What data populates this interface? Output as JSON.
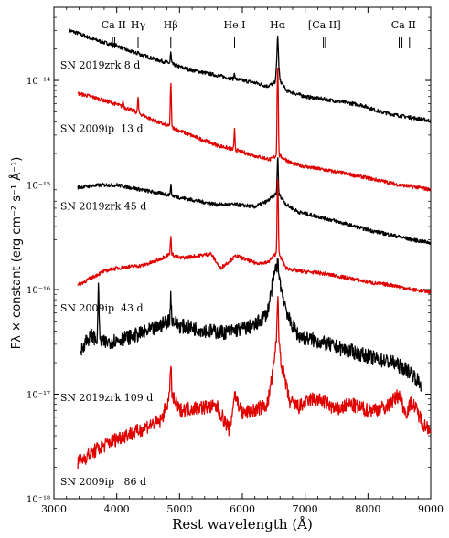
{
  "chart_data": {
    "type": "line",
    "xlabel": "Rest wavelength (Å)",
    "ylabel": "Fλ × constant (erg cm⁻² s⁻¹ Å⁻¹)",
    "xlim": [
      3000,
      9000
    ],
    "ylim": [
      1e-18,
      5e-14
    ],
    "yscale": "log",
    "xticks": [
      3000,
      4000,
      5000,
      6000,
      7000,
      8000,
      9000
    ],
    "ytick_labels": [
      {
        "value": 1e-14,
        "label": "10⁻¹⁴"
      },
      {
        "value": 1e-15,
        "label": "10⁻¹⁵"
      },
      {
        "value": 1e-16,
        "label": "10⁻¹⁶"
      },
      {
        "value": 1e-17,
        "label": "10⁻¹⁷"
      },
      {
        "value": 1e-18,
        "label": "10⁻¹⁸"
      }
    ],
    "line_ids": [
      {
        "label": "Ca II",
        "wavelengths": [
          3934,
          3968
        ]
      },
      {
        "label": "Hγ",
        "wavelengths": [
          4340
        ]
      },
      {
        "label": "Hβ",
        "wavelengths": [
          4861
        ]
      },
      {
        "label": "He I",
        "wavelengths": [
          5876
        ]
      },
      {
        "label": "Hα",
        "wavelengths": [
          6563
        ]
      },
      {
        "label": "[Ca II]",
        "wavelengths": [
          7291,
          7324
        ]
      },
      {
        "label": "Ca II",
        "wavelengths": [
          8498,
          8542,
          8662
        ]
      }
    ],
    "series": [
      {
        "name": "SN 2019zrk 8 d",
        "color": "#000000",
        "label_at": [
          3100,
          1.3e-14
        ],
        "points": [
          [
            3240,
            3e-14
          ],
          [
            3400,
            2.8e-14
          ],
          [
            3600,
            2.5e-14
          ],
          [
            3800,
            2.3e-14
          ],
          [
            4000,
            2.15e-14
          ],
          [
            4200,
            1.9e-14
          ],
          [
            4400,
            1.75e-14
          ],
          [
            4600,
            1.6e-14
          ],
          [
            4860,
            1.45e-14
          ],
          [
            5000,
            1.35e-14
          ],
          [
            5200,
            1.25e-14
          ],
          [
            5500,
            1.15e-14
          ],
          [
            5800,
            1.05e-14
          ],
          [
            6000,
            1e-14
          ],
          [
            6200,
            9.5e-15
          ],
          [
            6400,
            8.8e-15
          ],
          [
            6520,
            9.5e-15
          ],
          [
            6563,
            1.85e-14
          ],
          [
            6600,
            1e-14
          ],
          [
            6700,
            8e-15
          ],
          [
            7000,
            7e-15
          ],
          [
            7300,
            6.6e-15
          ],
          [
            7600,
            6.2e-15
          ],
          [
            7900,
            5.8e-15
          ],
          [
            8200,
            5e-15
          ],
          [
            8500,
            4.6e-15
          ],
          [
            8800,
            4.3e-15
          ],
          [
            9000,
            4.1e-15
          ]
        ],
        "peaks": [
          [
            4340,
            1e-15
          ],
          [
            4861,
            4e-15
          ],
          [
            5876,
            1.5e-15
          ],
          [
            6563,
            9e-15
          ]
        ]
      },
      {
        "name": "SN 2009ip  13 d",
        "color": "#e00000",
        "label_at": [
          3100,
          3.2e-15
        ],
        "points": [
          [
            3380,
            7.5e-15
          ],
          [
            3600,
            7e-15
          ],
          [
            3800,
            6.4e-15
          ],
          [
            4000,
            5.9e-15
          ],
          [
            4200,
            5.3e-15
          ],
          [
            4400,
            4.7e-15
          ],
          [
            4600,
            4.1e-15
          ],
          [
            4860,
            3.6e-15
          ],
          [
            5000,
            3.3e-15
          ],
          [
            5300,
            2.8e-15
          ],
          [
            5600,
            2.4e-15
          ],
          [
            5900,
            2.15e-15
          ],
          [
            6200,
            1.9e-15
          ],
          [
            6450,
            1.75e-15
          ],
          [
            6563,
            1.95e-15
          ],
          [
            6800,
            1.6e-15
          ],
          [
            7000,
            1.5e-15
          ],
          [
            7300,
            1.4e-15
          ],
          [
            7600,
            1.3e-15
          ],
          [
            7900,
            1.2e-15
          ],
          [
            8200,
            1.1e-15
          ],
          [
            8500,
            1e-15
          ],
          [
            8800,
            9.5e-16
          ],
          [
            9000,
            9e-16
          ]
        ],
        "peaks": [
          [
            4101,
            8e-16
          ],
          [
            4340,
            2e-15
          ],
          [
            4861,
            5.5e-15
          ],
          [
            5876,
            1.2e-15
          ],
          [
            6563,
            1.2e-14
          ]
        ]
      },
      {
        "name": "SN 2019zrk 45 d",
        "color": "#000000",
        "label_at": [
          3100,
          5.8e-16
        ],
        "points": [
          [
            3380,
            9.5e-16
          ],
          [
            3600,
            9.8e-16
          ],
          [
            3800,
            1e-15
          ],
          [
            4000,
            1e-15
          ],
          [
            4200,
            9.5e-16
          ],
          [
            4400,
            9e-16
          ],
          [
            4600,
            8.5e-16
          ],
          [
            4860,
            8e-16
          ],
          [
            5000,
            7.6e-16
          ],
          [
            5300,
            7e-16
          ],
          [
            5600,
            6.5e-16
          ],
          [
            5900,
            6.5e-16
          ],
          [
            6200,
            6.2e-16
          ],
          [
            6400,
            7e-16
          ],
          [
            6563,
            8.5e-16
          ],
          [
            6700,
            6.5e-16
          ],
          [
            6900,
            5.5e-16
          ],
          [
            7200,
            5e-16
          ],
          [
            7500,
            4.5e-16
          ],
          [
            7800,
            4e-16
          ],
          [
            8100,
            3.6e-16
          ],
          [
            8400,
            3.3e-16
          ],
          [
            8700,
            3e-16
          ],
          [
            9000,
            2.8e-16
          ]
        ],
        "peaks": [
          [
            4861,
            2e-16
          ],
          [
            6563,
            1e-15
          ]
        ]
      },
      {
        "name": "SN 2009ip  43 d",
        "color": "#e00000",
        "label_at": [
          3100,
          6.2e-17
        ],
        "points": [
          [
            3380,
            1.1e-16
          ],
          [
            3600,
            1.3e-16
          ],
          [
            3800,
            1.5e-16
          ],
          [
            4000,
            1.6e-16
          ],
          [
            4200,
            1.65e-16
          ],
          [
            4400,
            1.7e-16
          ],
          [
            4600,
            1.85e-16
          ],
          [
            4860,
            2.2e-16
          ],
          [
            5000,
            2e-16
          ],
          [
            5300,
            2.1e-16
          ],
          [
            5500,
            2.2e-16
          ],
          [
            5650,
            1.6e-16
          ],
          [
            5900,
            2.1e-16
          ],
          [
            6200,
            1.8e-16
          ],
          [
            6400,
            1.8e-16
          ],
          [
            6563,
            2.3e-16
          ],
          [
            6700,
            1.6e-16
          ],
          [
            6900,
            1.5e-16
          ],
          [
            7200,
            1.45e-16
          ],
          [
            7500,
            1.35e-16
          ],
          [
            7800,
            1.25e-16
          ],
          [
            8100,
            1.15e-16
          ],
          [
            8400,
            1.1e-16
          ],
          [
            8700,
            1e-16
          ],
          [
            9000,
            9.5e-17
          ]
        ],
        "peaks": [
          [
            4861,
            1e-16
          ],
          [
            6563,
            1e-15
          ]
        ]
      },
      {
        "name": "SN 2019zrk 109 d",
        "color": "#000000",
        "label_at": [
          3100,
          8.6e-18
        ],
        "points": [
          [
            3420,
            2.5e-17
          ],
          [
            3500,
            3.2e-17
          ],
          [
            3600,
            3.6e-17
          ],
          [
            3700,
            3.3e-17
          ],
          [
            3800,
            3.1e-17
          ],
          [
            4000,
            3.3e-17
          ],
          [
            4200,
            3.5e-17
          ],
          [
            4400,
            3.8e-17
          ],
          [
            4600,
            4.2e-17
          ],
          [
            4860,
            5.2e-17
          ],
          [
            5000,
            4.5e-17
          ],
          [
            5200,
            4.3e-17
          ],
          [
            5500,
            4e-17
          ],
          [
            5700,
            3.9e-17
          ],
          [
            5900,
            4.1e-17
          ],
          [
            6200,
            4.5e-17
          ],
          [
            6400,
            6e-17
          ],
          [
            6520,
            1.5e-16
          ],
          [
            6563,
            1.8e-16
          ],
          [
            6620,
            1e-16
          ],
          [
            6750,
            5e-17
          ],
          [
            6900,
            3.6e-17
          ],
          [
            7200,
            3.2e-17
          ],
          [
            7500,
            2.8e-17
          ],
          [
            7800,
            2.5e-17
          ],
          [
            8100,
            2.2e-17
          ],
          [
            8400,
            2e-17
          ],
          [
            8700,
            1.6e-17
          ],
          [
            8850,
            1.2e-17
          ]
        ],
        "peaks": [
          [
            3710,
            8e-17
          ],
          [
            4861,
            4e-17
          ]
        ]
      },
      {
        "name": "SN 2009ip   86 d",
        "color": "#e00000",
        "label_at": [
          3100,
          1.35e-18
        ],
        "points": [
          [
            3380,
            2.2e-18
          ],
          [
            3500,
            2.5e-18
          ],
          [
            3700,
            3e-18
          ],
          [
            3900,
            3.5e-18
          ],
          [
            4100,
            4e-18
          ],
          [
            4300,
            4.3e-18
          ],
          [
            4500,
            5e-18
          ],
          [
            4700,
            5.5e-18
          ],
          [
            4860,
            1e-17
          ],
          [
            5000,
            7e-18
          ],
          [
            5300,
            7.5e-18
          ],
          [
            5600,
            7.5e-18
          ],
          [
            5800,
            4.5e-18
          ],
          [
            5876,
            1e-17
          ],
          [
            6000,
            6.5e-18
          ],
          [
            6200,
            7e-18
          ],
          [
            6400,
            8e-18
          ],
          [
            6500,
            1.8e-17
          ],
          [
            6563,
            4.5e-17
          ],
          [
            6620,
            2e-17
          ],
          [
            6750,
            8.5e-18
          ],
          [
            6900,
            7.5e-18
          ],
          [
            7100,
            9e-18
          ],
          [
            7300,
            8.5e-18
          ],
          [
            7500,
            7e-18
          ],
          [
            7700,
            8e-18
          ],
          [
            8000,
            7e-18
          ],
          [
            8300,
            7.5e-18
          ],
          [
            8500,
            1e-17
          ],
          [
            8600,
            6.5e-18
          ],
          [
            8700,
            8.5e-18
          ],
          [
            8900,
            5e-18
          ],
          [
            9000,
            4.8e-18
          ]
        ],
        "peaks": [
          [
            4861,
            1.1e-17
          ],
          [
            6563,
            4.5e-17
          ]
        ]
      }
    ]
  }
}
